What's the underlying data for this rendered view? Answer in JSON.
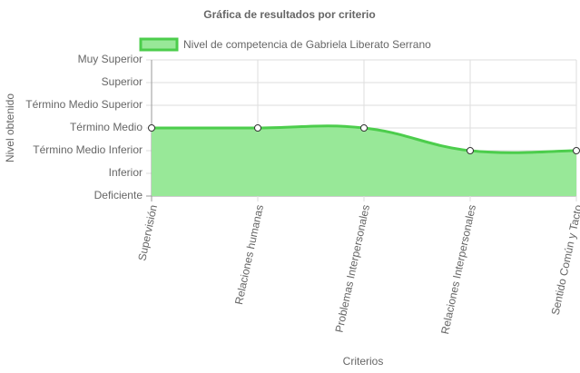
{
  "chart_data": {
    "type": "line",
    "title": "Gráfica de resultados por criterio",
    "x_label": "Criterios",
    "y_label": "Nivel obtenido",
    "categories": [
      "Supervisión",
      "Relaciones humanas",
      "Problemas Interpersonales",
      "Relaciones Interpersonales",
      "Sentido Común y Tacto"
    ],
    "series": [
      {
        "name": "Nivel de competencia de Gabriela Liberato Serrano",
        "color": "#4ccd4c",
        "fill": "#98e898",
        "values": [
          3,
          3,
          3,
          2,
          2
        ]
      }
    ],
    "ylim": [
      0,
      6
    ],
    "yticks": [
      {
        "value": 0,
        "label": "Deficiente"
      },
      {
        "value": 1,
        "label": "Inferior"
      },
      {
        "value": 2,
        "label": "Término Medio Inferior"
      },
      {
        "value": 3,
        "label": "Término Medio"
      },
      {
        "value": 4,
        "label": "Término Medio Superior"
      },
      {
        "value": 5,
        "label": "Superior"
      },
      {
        "value": 6,
        "label": "Muy Superior"
      }
    ],
    "grid": true
  }
}
